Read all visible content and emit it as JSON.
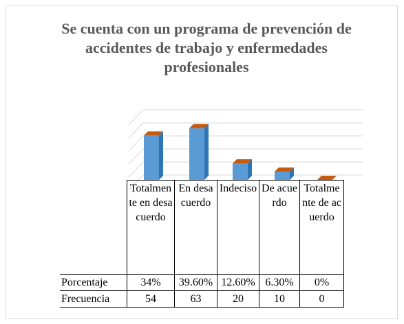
{
  "chart_data": {
    "type": "bar3d",
    "title": "Se cuenta con un programa de prevención de accidentes de trabajo y enfermedades profesionales",
    "categories": [
      "Totalmente en desacuerdo",
      "En desacuerdo",
      "Indeciso",
      "De acuerdo",
      "Totalmente de acuerdo"
    ],
    "series": [
      {
        "name": "Porcentaje",
        "color": "#5b9bd5",
        "values": [
          34,
          39.6,
          12.6,
          6.3,
          0
        ],
        "value_labels": [
          "34%",
          "39.60%",
          "12.60%",
          "6.30%",
          "0%"
        ]
      },
      {
        "name": "Frecuencia",
        "values": [
          54,
          63,
          20,
          10,
          0
        ]
      }
    ],
    "ylim": [
      0,
      50
    ],
    "yticks": [
      0,
      10,
      20,
      30,
      40,
      50
    ],
    "grid": true
  }
}
